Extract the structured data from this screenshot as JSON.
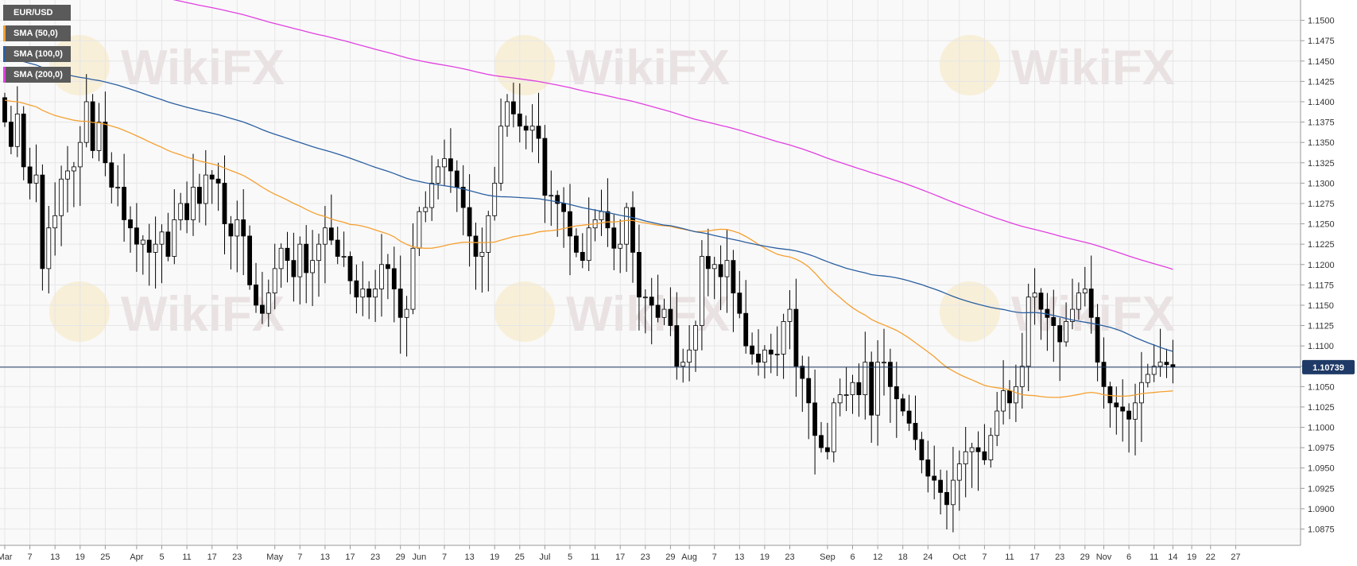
{
  "legend": {
    "symbol": "EUR/USD",
    "sma50": "SMA (50,0)",
    "sma100": "SMA (100,0)",
    "sma200": "SMA (200,0)"
  },
  "colors": {
    "background": "#f9f9f9",
    "grid": "#e6e6e6",
    "candle_up_fill": "#ffffff",
    "candle_down_fill": "#000000",
    "candle_outline": "#000000",
    "sma50": "#f5a030",
    "sma100": "#2a5fa0",
    "sma200": "#e040e0",
    "price_line": "#1f3a66",
    "price_badge": "#1f3a66",
    "axis_text": "#333333"
  },
  "watermark": "WikiFX",
  "chart_data": {
    "type": "candlestick",
    "title": "EUR/USD",
    "ylim": [
      1.0855,
      1.1525
    ],
    "y_ticks": [
      "1.0875",
      "1.0900",
      "1.0925",
      "1.0950",
      "1.0975",
      "1.1000",
      "1.1025",
      "1.1050",
      "1.1075",
      "1.1100",
      "1.1125",
      "1.1150",
      "1.1175",
      "1.1200",
      "1.1225",
      "1.1250",
      "1.1275",
      "1.1300",
      "1.1325",
      "1.1350",
      "1.1375",
      "1.1400",
      "1.1425",
      "1.1450",
      "1.1475",
      "1.1500"
    ],
    "x_ticks": [
      {
        "label": "Mar",
        "index": 0
      },
      {
        "label": "7",
        "index": 4
      },
      {
        "label": "13",
        "index": 8
      },
      {
        "label": "19",
        "index": 12
      },
      {
        "label": "25",
        "index": 16
      },
      {
        "label": "Apr",
        "index": 21
      },
      {
        "label": "5",
        "index": 25
      },
      {
        "label": "11",
        "index": 29
      },
      {
        "label": "17",
        "index": 33
      },
      {
        "label": "23",
        "index": 37
      },
      {
        "label": "May",
        "index": 43
      },
      {
        "label": "7",
        "index": 47
      },
      {
        "label": "13",
        "index": 51
      },
      {
        "label": "17",
        "index": 55
      },
      {
        "label": "23",
        "index": 59
      },
      {
        "label": "29",
        "index": 63
      },
      {
        "label": "Jun",
        "index": 66
      },
      {
        "label": "7",
        "index": 70
      },
      {
        "label": "13",
        "index": 74
      },
      {
        "label": "19",
        "index": 78
      },
      {
        "label": "25",
        "index": 82
      },
      {
        "label": "Jul",
        "index": 86
      },
      {
        "label": "5",
        "index": 90
      },
      {
        "label": "11",
        "index": 94
      },
      {
        "label": "17",
        "index": 98
      },
      {
        "label": "23",
        "index": 102
      },
      {
        "label": "29",
        "index": 106
      },
      {
        "label": "Aug",
        "index": 109
      },
      {
        "label": "7",
        "index": 113
      },
      {
        "label": "13",
        "index": 117
      },
      {
        "label": "19",
        "index": 121
      },
      {
        "label": "23",
        "index": 125
      },
      {
        "label": "Sep",
        "index": 131
      },
      {
        "label": "6",
        "index": 135
      },
      {
        "label": "12",
        "index": 139
      },
      {
        "label": "18",
        "index": 143
      },
      {
        "label": "24",
        "index": 147
      },
      {
        "label": "Oct",
        "index": 152
      },
      {
        "label": "7",
        "index": 156
      },
      {
        "label": "11",
        "index": 160
      },
      {
        "label": "17",
        "index": 164
      },
      {
        "label": "23",
        "index": 168
      },
      {
        "label": "29",
        "index": 172
      },
      {
        "label": "Nov",
        "index": 175
      },
      {
        "label": "6",
        "index": 179
      },
      {
        "label": "11",
        "index": 183
      },
      {
        "label": "14",
        "index": 186
      },
      {
        "label": "19",
        "index": 189
      },
      {
        "label": "22",
        "index": 192
      },
      {
        "label": "27",
        "index": 196
      }
    ],
    "current_price": "1.10739",
    "current_price_value": 1.10739,
    "close": [
      1.1375,
      1.1345,
      1.1385,
      1.132,
      1.13,
      1.131,
      1.1195,
      1.1245,
      1.126,
      1.1305,
      1.1315,
      1.132,
      1.135,
      1.14,
      1.134,
      1.1375,
      1.1325,
      1.1295,
      1.1295,
      1.1255,
      1.1245,
      1.1225,
      1.123,
      1.1215,
      1.1225,
      1.124,
      1.121,
      1.1255,
      1.1275,
      1.1255,
      1.1295,
      1.1275,
      1.131,
      1.1305,
      1.13,
      1.125,
      1.1235,
      1.1255,
      1.1235,
      1.1175,
      1.115,
      1.114,
      1.1165,
      1.1195,
      1.122,
      1.1205,
      1.1185,
      1.1225,
      1.119,
      1.1205,
      1.1225,
      1.1245,
      1.123,
      1.121,
      1.121,
      1.118,
      1.116,
      1.117,
      1.116,
      1.117,
      1.12,
      1.1195,
      1.117,
      1.1135,
      1.1145,
      1.122,
      1.1265,
      1.127,
      1.13,
      1.132,
      1.133,
      1.1315,
      1.1295,
      1.127,
      1.1235,
      1.121,
      1.1215,
      1.126,
      1.13,
      1.137,
      1.14,
      1.1385,
      1.137,
      1.1365,
      1.137,
      1.1355,
      1.1285,
      1.1285,
      1.1275,
      1.1265,
      1.1235,
      1.1215,
      1.1205,
      1.1245,
      1.1255,
      1.1265,
      1.1245,
      1.122,
      1.1225,
      1.127,
      1.1215,
      1.116,
      1.116,
      1.115,
      1.1135,
      1.1145,
      1.1125,
      1.1075,
      1.108,
      1.1095,
      1.1125,
      1.121,
      1.1195,
      1.12,
      1.1185,
      1.1205,
      1.1165,
      1.114,
      1.11,
      1.109,
      1.108,
      1.1095,
      1.109,
      1.109,
      1.113,
      1.1145,
      1.1075,
      1.106,
      1.103,
      1.099,
      1.0975,
      1.097,
      1.103,
      1.104,
      1.104,
      1.1055,
      1.104,
      1.108,
      1.1015,
      1.108,
      1.108,
      1.105,
      1.1035,
      1.102,
      1.1005,
      1.0985,
      1.096,
      1.094,
      1.0935,
      1.092,
      1.0905,
      1.0935,
      1.0955,
      1.097,
      1.0975,
      1.097,
      1.096,
      1.099,
      1.102,
      1.1045,
      1.103,
      1.105,
      1.1075,
      1.116,
      1.1165,
      1.1145,
      1.1135,
      1.1125,
      1.1105,
      1.113,
      1.1145,
      1.1165,
      1.117,
      1.1135,
      1.108,
      1.105,
      1.103,
      1.1025,
      1.102,
      1.101,
      1.103,
      1.1055,
      1.1065,
      1.1075,
      1.108,
      1.1077,
      1.1074
    ],
    "series": [
      {
        "name": "SMA (50,0)",
        "color": "#f5a030"
      },
      {
        "name": "SMA (100,0)",
        "color": "#2a5fa0"
      },
      {
        "name": "SMA (200,0)",
        "color": "#e040e0"
      }
    ],
    "grid": true,
    "legend_position": "top-left"
  }
}
